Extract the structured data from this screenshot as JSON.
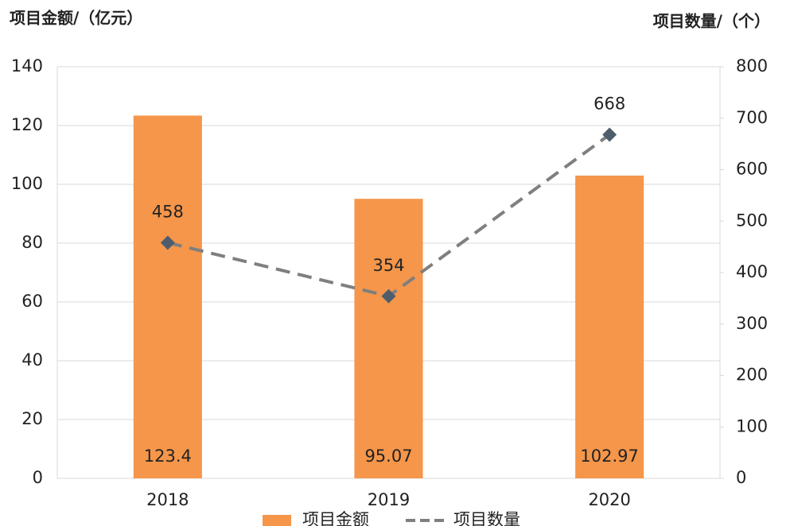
{
  "chart_data": {
    "type": "bar",
    "y_axis_title": "项目金额/（亿元）",
    "y2_axis_title": "项目数量/（个）",
    "categories": [
      "2018",
      "2019",
      "2020"
    ],
    "series": [
      {
        "name": "项目金额",
        "type": "bar",
        "color": "#f5964a",
        "values": [
          123.4,
          95.07,
          102.97
        ]
      },
      {
        "name": "项目数量",
        "type": "line",
        "axis": "y2",
        "color": "#7f7f7f",
        "marker_color": "#4e5d6c",
        "values": [
          458,
          354,
          668
        ]
      }
    ],
    "ylim": [
      0,
      140
    ],
    "yticks": [
      0,
      20,
      40,
      60,
      80,
      100,
      120,
      140
    ],
    "y2lim": [
      0,
      800
    ],
    "y2ticks": [
      0,
      100,
      200,
      300,
      400,
      500,
      600,
      700,
      800
    ],
    "grid": true,
    "legend": "bottom"
  }
}
